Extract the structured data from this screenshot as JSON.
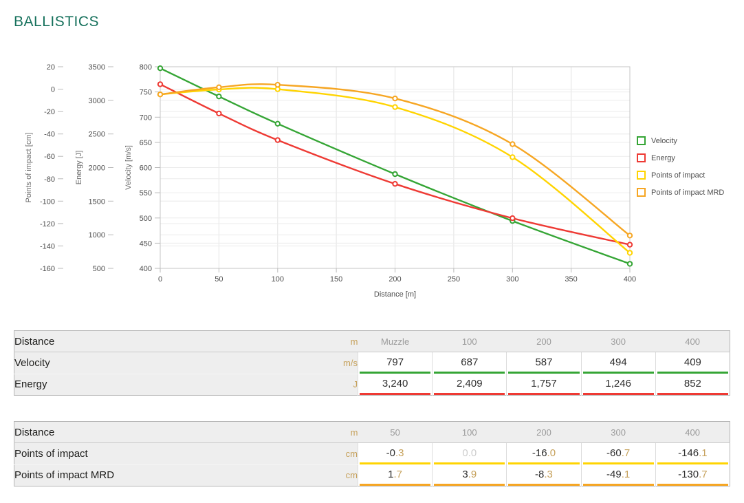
{
  "page": {
    "title": "BALLISTICS"
  },
  "chart_data": {
    "type": "line",
    "xlabel": "Distance [m]",
    "x_range": [
      0,
      400
    ],
    "x_ticks": [
      0,
      50,
      100,
      150,
      200,
      250,
      300,
      350,
      400
    ],
    "x": [
      0,
      50,
      100,
      200,
      300,
      400
    ],
    "grid": true,
    "legend_position": "right",
    "y_axes": [
      {
        "id": "poi",
        "title": "Points of impact [cm]",
        "min": -160,
        "max": 20,
        "ticks": [
          20,
          0,
          -20,
          -40,
          -60,
          -80,
          -100,
          -120,
          -140,
          -160
        ]
      },
      {
        "id": "energy",
        "title": "Energy [J]",
        "min": 500,
        "max": 3500,
        "ticks": [
          3500,
          3000,
          2500,
          2000,
          1500,
          1000,
          500
        ]
      },
      {
        "id": "velocity",
        "title": "Velocity [m/s]",
        "min": 400,
        "max": 800,
        "ticks": [
          800,
          750,
          700,
          650,
          600,
          550,
          500,
          450,
          400
        ]
      }
    ],
    "series": [
      {
        "name": "Velocity",
        "axis": "velocity",
        "color": "#35a535",
        "values": [
          797,
          741,
          687,
          587,
          494,
          409
        ]
      },
      {
        "name": "Energy",
        "axis": "energy",
        "color": "#ee3a34",
        "values": [
          3240,
          2805,
          2409,
          1757,
          1246,
          852
        ]
      },
      {
        "name": "Points of impact",
        "axis": "poi",
        "color": "#ffd401",
        "values": [
          -4.7,
          -0.3,
          0.0,
          -16.0,
          -60.7,
          -146.1
        ]
      },
      {
        "name": "Points of impact MRD",
        "axis": "poi",
        "color": "#f6a623",
        "values": [
          -4.7,
          1.7,
          3.9,
          -8.3,
          -49.1,
          -130.7
        ]
      }
    ]
  },
  "tables": [
    {
      "header": {
        "label": "Distance",
        "unit": "m",
        "columns": [
          "Muzzle",
          "100",
          "200",
          "300",
          "400"
        ]
      },
      "rows": [
        {
          "label": "Velocity",
          "unit": "m/s",
          "color": "#35a535",
          "values": [
            "797",
            "687",
            "587",
            "494",
            "409"
          ]
        },
        {
          "label": "Energy",
          "unit": "J",
          "color": "#ee3a34",
          "values": [
            "3,240",
            "2,409",
            "1,757",
            "1,246",
            "852"
          ]
        }
      ]
    },
    {
      "header": {
        "label": "Distance",
        "unit": "m",
        "columns": [
          "50",
          "100",
          "200",
          "300",
          "400"
        ]
      },
      "rows": [
        {
          "label": "Points of impact",
          "unit": "cm",
          "color": "#ffd401",
          "values": [
            "-0.3",
            "0.0",
            "-16.0",
            "-60.7",
            "-146.1"
          ],
          "muted": [
            false,
            true,
            false,
            false,
            false
          ]
        },
        {
          "label": "Points of impact MRD",
          "unit": "cm",
          "color": "#f6a623",
          "values": [
            "1.7",
            "3.9",
            "-8.3",
            "-49.1",
            "-130.7"
          ]
        }
      ]
    }
  ]
}
